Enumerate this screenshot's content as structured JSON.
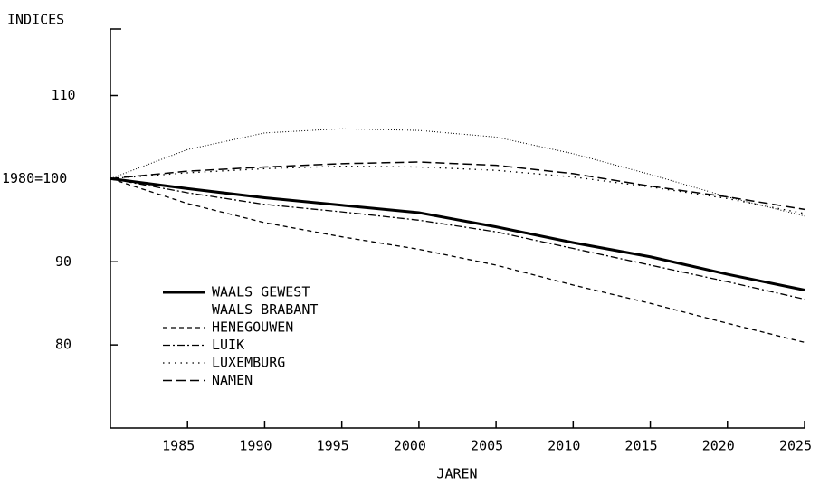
{
  "chart_data": {
    "type": "line",
    "ylabel": "INDICES",
    "xlabel": "JAREN",
    "x": [
      1980,
      1985,
      1990,
      1995,
      2000,
      2005,
      2010,
      2015,
      2020,
      2025
    ],
    "xlim": [
      1980,
      2025
    ],
    "xticks": [
      1985,
      1990,
      1995,
      2000,
      2005,
      2010,
      2015,
      2020,
      2025
    ],
    "ylim": [
      70,
      118
    ],
    "yticks": [
      80,
      90,
      {
        "value": 100,
        "label": "1980=100"
      },
      110
    ],
    "grid": false,
    "legend": "lower left",
    "series": [
      {
        "name": "WAALS GEWEST",
        "color": "#000000",
        "line_style": "solid",
        "values": [
          100,
          98.8,
          97.7,
          96.8,
          95.9,
          94.2,
          92.3,
          90.6,
          88.5,
          86.6
        ]
      },
      {
        "name": "WAALS BRABANT",
        "color": "#000000",
        "line_style": "dotted",
        "values": [
          100,
          103.5,
          105.5,
          106,
          105.8,
          105,
          103,
          100.5,
          97.8,
          95.5
        ]
      },
      {
        "name": "HENEGOUWEN",
        "color": "#000000",
        "line_style": "dashed",
        "values": [
          100,
          97,
          94.7,
          93,
          91.5,
          89.6,
          87.2,
          85,
          82.6,
          80.3
        ]
      },
      {
        "name": "LUIK",
        "color": "#000000",
        "line_style": "dashdot",
        "values": [
          100,
          98.3,
          96.9,
          96,
          95,
          93.6,
          91.6,
          89.6,
          87.6,
          85.5
        ]
      },
      {
        "name": "LUXEMBURG",
        "color": "#000000",
        "line_style": "sparse-dotted",
        "values": [
          100,
          100.7,
          101.2,
          101.5,
          101.4,
          101,
          100.2,
          99,
          97.6,
          95.8
        ]
      },
      {
        "name": "NAMEN",
        "color": "#000000",
        "line_style": "longdash",
        "values": [
          100,
          100.9,
          101.4,
          101.8,
          102,
          101.6,
          100.6,
          99.1,
          97.8,
          96.3
        ]
      }
    ]
  }
}
